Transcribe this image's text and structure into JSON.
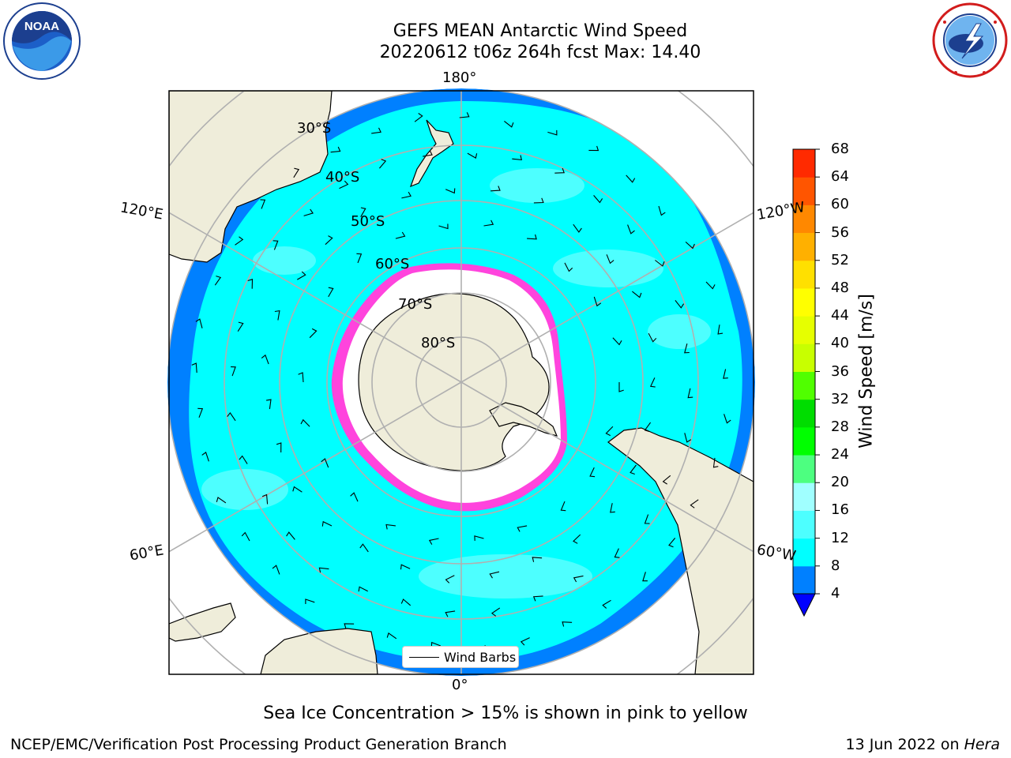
{
  "title": {
    "line1": "GEFS MEAN Antarctic Wind Speed",
    "line2": "20220612 t06z 264h fcst   Max: 14.40"
  },
  "logos": {
    "left": "noaa-logo",
    "left_text": "NOAA",
    "right": "nws-logo"
  },
  "map": {
    "projection": "south-polar-stereographic",
    "longitude_labels": [
      "180°",
      "120°E",
      "120°W",
      "60°E",
      "60°W",
      "0°"
    ],
    "latitude_labels": [
      "30°S",
      "40°S",
      "50°S",
      "60°S",
      "70°S",
      "80°S"
    ],
    "colors": {
      "land": "#efedda",
      "wind_4_8": "#0080ff",
      "wind_8_12": "#00ffff",
      "wind_12_16": "#4dffff",
      "sea_ice_edge": "#ff44dd",
      "sea_ice_inner": "#ffffff",
      "grid": "#b0b0b0"
    }
  },
  "legend": {
    "label": "Wind Barbs"
  },
  "colorbar": {
    "label": "Wind Speed [m/s]",
    "ticks": [
      "4",
      "8",
      "12",
      "16",
      "20",
      "24",
      "28",
      "32",
      "36",
      "40",
      "44",
      "48",
      "52",
      "56",
      "60",
      "64",
      "68"
    ],
    "colors": [
      "#0080ff",
      "#00ffff",
      "#4dffff",
      "#a0ffff",
      "#4dff80",
      "#00ff00",
      "#00dd00",
      "#50ff00",
      "#c8ff00",
      "#e6ff00",
      "#ffff00",
      "#ffe000",
      "#ffb000",
      "#ff8800",
      "#ff5500",
      "#ff2a00",
      "#ff0000"
    ],
    "extend_color": "#0000ff"
  },
  "footnote": "Sea Ice Concentration > 15% is shown in pink to yellow",
  "footer": {
    "left": "NCEP/EMC/Verification Post Processing Product Generation Branch",
    "right_prefix": "13 Jun 2022 on ",
    "right_italic": "Hera"
  }
}
